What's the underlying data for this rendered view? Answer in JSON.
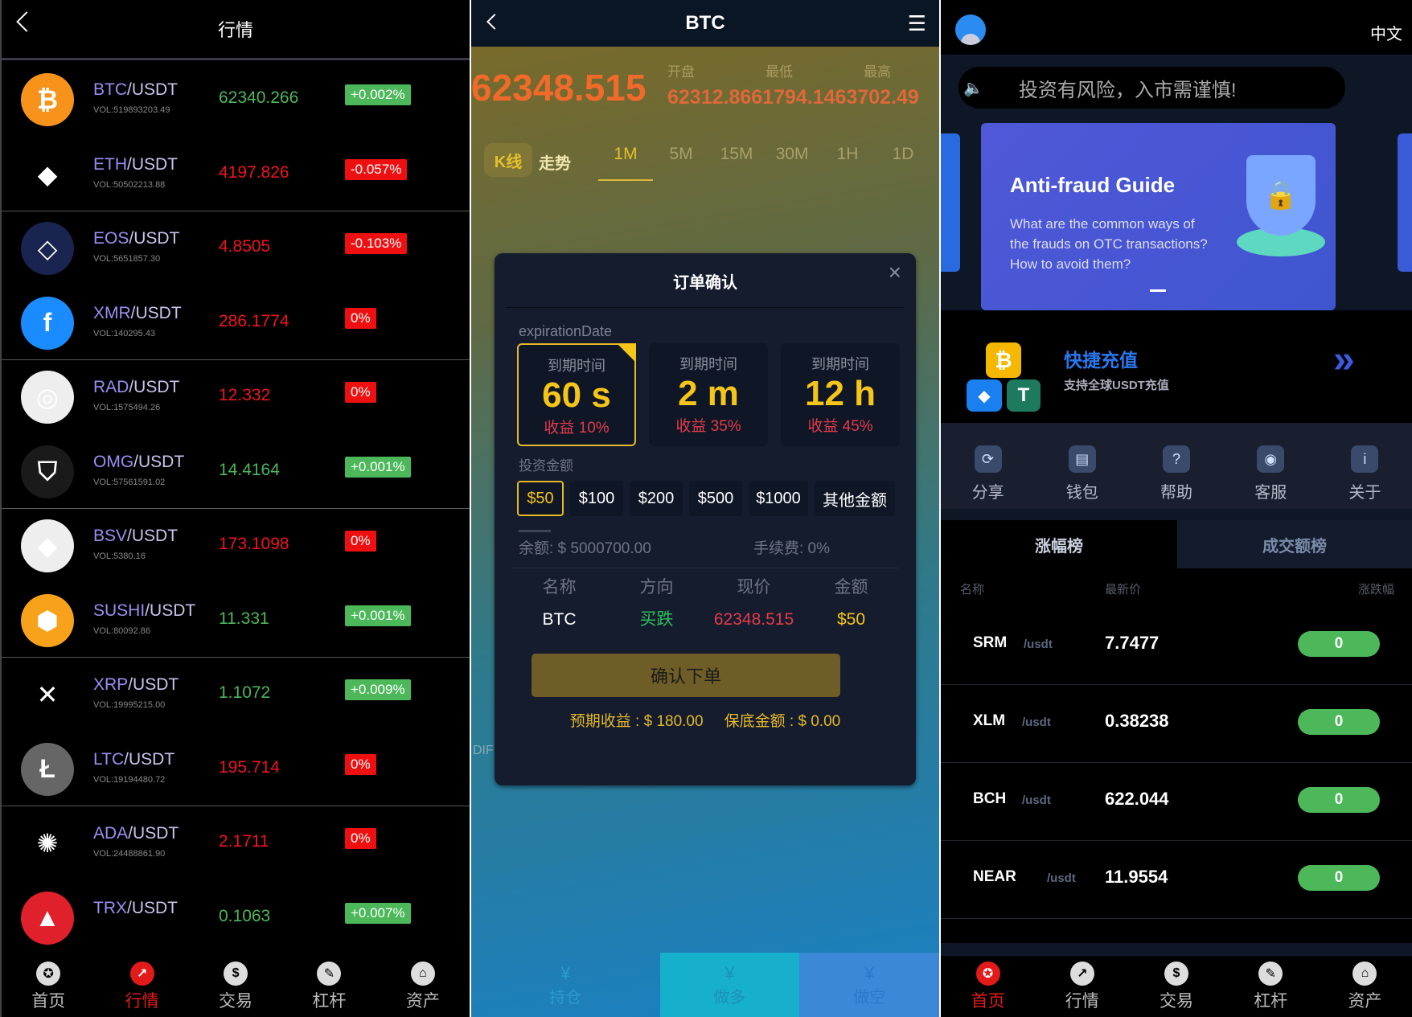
{
  "market": {
    "title": "行情",
    "rows": [
      {
        "pair": "BTC",
        "quote": "/USDT",
        "vol": "VOL:519893203.49",
        "price": "62340.266",
        "change": "+0.002%",
        "dir": "up",
        "color": "#f7931a",
        "glyph": "₿"
      },
      {
        "pair": "ETH",
        "quote": "/USDT",
        "vol": "VOL:50502213.88",
        "price": "4197.826",
        "change": "-0.057%",
        "dir": "dn",
        "color": "#000000",
        "glyph": "◆"
      },
      {
        "pair": "EOS",
        "quote": "/USDT",
        "vol": "VOL:5651857.30",
        "price": "4.8505",
        "change": "-0.103%",
        "dir": "dn",
        "color": "#1a2450",
        "glyph": "◇"
      },
      {
        "pair": "XMR",
        "quote": "/USDT",
        "vol": "VOL:140295.43",
        "price": "286.1774",
        "change": "0%",
        "dir": "dn",
        "color": "#1a8cff",
        "glyph": "f"
      },
      {
        "pair": "RAD",
        "quote": "/USDT",
        "vol": "VOL:1575494.26",
        "price": "12.332",
        "change": "0%",
        "dir": "dn",
        "color": "#eeeeee",
        "glyph": "◎"
      },
      {
        "pair": "OMG",
        "quote": "/USDT",
        "vol": "VOL:57561591.02",
        "price": "14.4164",
        "change": "+0.001%",
        "dir": "up",
        "color": "#1a1a1a",
        "glyph": "⛉"
      },
      {
        "pair": "BSV",
        "quote": "/USDT",
        "vol": "VOL:5380.16",
        "price": "173.1098",
        "change": "0%",
        "dir": "dn",
        "color": "#eeeeee",
        "glyph": "◆"
      },
      {
        "pair": "SUSHI",
        "quote": "/USDT",
        "vol": "VOL:80092.86",
        "price": "11.331",
        "change": "+0.001%",
        "dir": "up",
        "color": "#f7a21a",
        "glyph": "⬢"
      },
      {
        "pair": "XRP",
        "quote": "/USDT",
        "vol": "VOL:19995215.00",
        "price": "1.1072",
        "change": "+0.009%",
        "dir": "up",
        "color": "#000000",
        "glyph": "✕"
      },
      {
        "pair": "LTC",
        "quote": "/USDT",
        "vol": "VOL:19194480.72",
        "price": "195.714",
        "change": "0%",
        "dir": "dn",
        "color": "#666666",
        "glyph": "Ł"
      },
      {
        "pair": "ADA",
        "quote": "/USDT",
        "vol": "VOL:24488861.90",
        "price": "2.1711",
        "change": "0%",
        "dir": "dn",
        "color": "#000000",
        "glyph": "✺"
      },
      {
        "pair": "TRX",
        "quote": "/USDT",
        "vol": "",
        "price": "0.1063",
        "change": "+0.007%",
        "dir": "up",
        "color": "#e0202a",
        "glyph": "▲"
      }
    ],
    "nav": [
      {
        "label": "首页",
        "icon": "home-icon"
      },
      {
        "label": "行情",
        "icon": "market-icon",
        "active": true
      },
      {
        "label": "交易",
        "icon": "dollar-icon"
      },
      {
        "label": "杠杆",
        "icon": "leverage-icon"
      },
      {
        "label": "资产",
        "icon": "safe-icon"
      }
    ]
  },
  "trade": {
    "title": "BTC",
    "price": "62348.515",
    "stats_labels": [
      "开盘",
      "最低",
      "最高"
    ],
    "stats_values": "62312.8661794.1463702.49",
    "tabs": [
      "K线",
      "走势"
    ],
    "timeframes": [
      "1M",
      "5M",
      "15M",
      "30M",
      "1H",
      "1D"
    ],
    "active_timeframe": "1M",
    "side_text": "DIF",
    "modal": {
      "title": "订单确认",
      "exp_label": "expirationDate",
      "expirations": [
        {
          "label": "到期时间",
          "value": "60 s",
          "profit": "收益 10%",
          "selected": true
        },
        {
          "label": "到期时间",
          "value": "2 m",
          "profit": "收益 35%"
        },
        {
          "label": "到期时间",
          "value": "12 h",
          "profit": "收益 45%"
        }
      ],
      "amount_label": "投资金额",
      "amounts": [
        "$50",
        "$100",
        "$200",
        "$500",
        "$1000",
        "其他金额"
      ],
      "selected_amount": "$50",
      "balance": "余额: $ 5000700.00",
      "fee": "手续费:  0%",
      "headers": [
        "名称",
        "方向",
        "现价",
        "金额"
      ],
      "values": [
        "BTC",
        "买跌",
        "62348.515",
        "$50"
      ],
      "confirm": "确认下单",
      "expected": "预期收益 : $ 180.00",
      "guarantee": "保底金额 : $ 0.00"
    },
    "bottom": [
      "持仓",
      "做多",
      "做空"
    ]
  },
  "home": {
    "lang": "中文",
    "notice": "投资有风险，入市需谨慎!",
    "banner": {
      "title": "Anti-fraud Guide",
      "lines": [
        "What are the common ways of",
        "the frauds on OTC transactions?",
        "How to avoid them?"
      ]
    },
    "deposit": {
      "title": "快捷充值",
      "subtitle": "支持全球USDT充值"
    },
    "quick": [
      {
        "label": "分享",
        "icon": "share-icon"
      },
      {
        "label": "钱包",
        "icon": "wallet-icon"
      },
      {
        "label": "帮助",
        "icon": "help-icon"
      },
      {
        "label": "客服",
        "icon": "support-icon"
      },
      {
        "label": "关于",
        "icon": "info-icon"
      }
    ],
    "tabs": [
      "涨幅榜",
      "成交额榜"
    ],
    "headers": [
      "名称",
      "最新价",
      "涨跌幅"
    ],
    "rows": [
      {
        "sym": "SRM",
        "quote": "/usdt",
        "price": "7.7477",
        "change": "0"
      },
      {
        "sym": "XLM",
        "quote": "/usdt",
        "price": "0.38238",
        "change": "0"
      },
      {
        "sym": "BCH",
        "quote": "/usdt",
        "price": "622.044",
        "change": "0"
      },
      {
        "sym": "NEAR",
        "quote": "/usdt",
        "price": "11.9554",
        "change": "0"
      }
    ],
    "nav": [
      {
        "label": "首页",
        "active": true
      },
      {
        "label": "行情"
      },
      {
        "label": "交易"
      },
      {
        "label": "杠杆"
      },
      {
        "label": "资产"
      }
    ]
  }
}
